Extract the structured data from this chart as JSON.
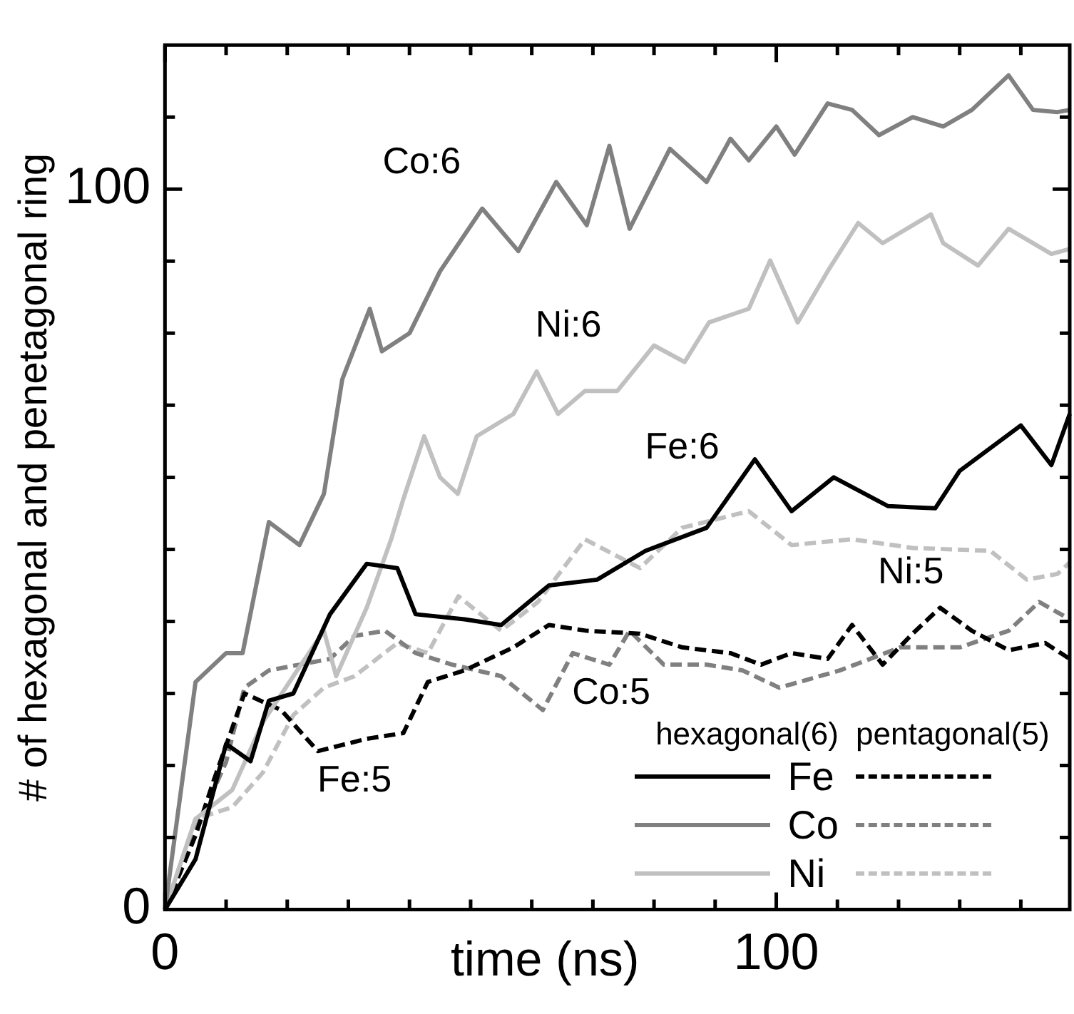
{
  "chart_data": {
    "type": "line",
    "xlabel": "time (ns)",
    "ylabel": "# of hexagonal and penetagonal ring",
    "xlim": [
      0,
      148
    ],
    "ylim": [
      0,
      120
    ],
    "xticks": [
      0,
      {
        "value": 10,
        "label": null
      },
      {
        "value": 20,
        "label": null
      },
      {
        "value": 30,
        "label": null
      },
      {
        "value": 40,
        "label": null
      },
      {
        "value": 50,
        "label": null
      },
      {
        "value": 60,
        "label": null
      },
      {
        "value": 70,
        "label": null
      },
      {
        "value": 80,
        "label": null
      },
      {
        "value": 90,
        "label": null
      },
      100,
      {
        "value": 110,
        "label": null
      },
      {
        "value": 120,
        "label": null
      },
      {
        "value": 130,
        "label": null
      },
      {
        "value": 140,
        "label": null
      }
    ],
    "yticks": [
      0,
      {
        "value": 10,
        "label": null
      },
      {
        "value": 20,
        "label": null
      },
      {
        "value": 30,
        "label": null
      },
      {
        "value": 40,
        "label": null
      },
      {
        "value": 50,
        "label": null
      },
      {
        "value": 60,
        "label": null
      },
      {
        "value": 70,
        "label": null
      },
      {
        "value": 80,
        "label": null
      },
      {
        "value": 90,
        "label": null
      },
      100,
      {
        "value": 110,
        "label": null
      }
    ],
    "grid": false,
    "marker": "none",
    "annotations": [
      "hexagonal(6)",
      "pentagonal(5)",
      "Fe",
      "Co",
      "Ni"
    ],
    "series": [
      {
        "name": "Fe:6",
        "color": "#000000",
        "line_style": "solid",
        "x": [
          0,
          5,
          10,
          14,
          17,
          21,
          27,
          33,
          38,
          41,
          49,
          55,
          62.8,
          70.7,
          78.6,
          88.6,
          96.5,
          102.5,
          109.4,
          118.3,
          126,
          130,
          140,
          145,
          148
        ],
        "values": [
          0,
          7,
          23,
          20.6,
          29,
          30,
          41,
          48,
          47.4,
          41,
          40.3,
          39.5,
          45,
          45.8,
          49.8,
          53,
          62.5,
          55.3,
          60,
          56,
          55.7,
          60.9,
          67.2,
          61.7,
          68.8
        ]
      },
      {
        "name": "Co:6",
        "color": "#808080",
        "line_style": "solid",
        "x": [
          0,
          5,
          10,
          12.7,
          17,
          22,
          26,
          29,
          33.5,
          35.5,
          40,
          45,
          51.9,
          57.8,
          64,
          69,
          72.7,
          76,
          82.6,
          88.6,
          92.5,
          95.5,
          100,
          103,
          108.4,
          112.4,
          116.8,
          122.3,
          127.3,
          132,
          138,
          142,
          146,
          148
        ],
        "values": [
          0,
          31.6,
          35.6,
          35.6,
          53.8,
          50.6,
          57.7,
          73.6,
          83.4,
          77.5,
          80,
          88.6,
          97.3,
          91.4,
          101,
          95,
          106,
          94.5,
          105.6,
          101,
          107,
          104,
          108.7,
          104.8,
          111.9,
          111,
          107.5,
          110,
          108.7,
          111,
          115.8,
          111,
          110.7,
          111
        ]
      },
      {
        "name": "Ni:6",
        "color": "#c0c0c0",
        "line_style": "solid",
        "x": [
          0,
          5,
          11,
          16,
          21,
          26,
          28,
          33,
          37,
          39,
          42.4,
          45,
          47.9,
          51,
          57,
          60.8,
          64.3,
          68.7,
          74,
          80,
          85,
          89,
          95.5,
          99,
          103.5,
          108.4,
          113.4,
          117.4,
          125.3,
          127.3,
          133,
          138,
          145,
          148
        ],
        "values": [
          0,
          12.6,
          16.6,
          26,
          32.4,
          38.7,
          32.4,
          41.9,
          51.4,
          57,
          65.7,
          60,
          57.7,
          65.7,
          68.8,
          74.7,
          68.8,
          72,
          72,
          78.3,
          76,
          81.5,
          83.4,
          90.1,
          81.5,
          88.6,
          95.3,
          92.5,
          96.5,
          92.5,
          89.4,
          94.5,
          91,
          91.7
        ]
      },
      {
        "name": "Fe:5",
        "color": "#000000",
        "line_style": "dashed",
        "x": [
          0,
          5,
          8,
          13,
          19,
          25,
          33,
          39,
          43,
          49,
          57,
          62.8,
          69,
          77.7,
          84.6,
          92.5,
          97.5,
          102.5,
          108.4,
          112.4,
          117.4,
          122.3,
          126.8,
          132,
          138,
          144,
          148
        ],
        "values": [
          0,
          10.3,
          18,
          30,
          27.7,
          22,
          23.7,
          24.5,
          31.6,
          33.2,
          36.4,
          39.5,
          38.7,
          38.3,
          36.4,
          35.6,
          34,
          35.6,
          34.8,
          39.5,
          34,
          38.3,
          41.9,
          38.7,
          36,
          37,
          34.8
        ]
      },
      {
        "name": "Co:5",
        "color": "#808080",
        "line_style": "dashed",
        "x": [
          0,
          5,
          10,
          13,
          17,
          22,
          27,
          31,
          36,
          41,
          47,
          55,
          61.8,
          66.7,
          72.7,
          76,
          81.6,
          88.6,
          94.5,
          100.5,
          110.4,
          120.3,
          130,
          138,
          143,
          148
        ],
        "values": [
          0,
          11,
          20.5,
          30.8,
          33.2,
          34,
          34.8,
          38,
          38.7,
          35.6,
          34,
          32.4,
          27.7,
          35.6,
          34,
          38.7,
          34,
          34,
          33.2,
          30.8,
          33.2,
          36.4,
          36.4,
          38.7,
          42.7,
          40.3
        ]
      },
      {
        "name": "Ni:5",
        "color": "#c0c0c0",
        "line_style": "dashed",
        "x": [
          0,
          5,
          11,
          16,
          21,
          26,
          31,
          38,
          43,
          48,
          55,
          61,
          68.7,
          77.7,
          84.6,
          95.5,
          102.5,
          112.4,
          122.3,
          135,
          141,
          146,
          148
        ],
        "values": [
          0,
          12.6,
          14.2,
          19,
          27,
          30.8,
          32.4,
          37,
          35.6,
          43.5,
          38.7,
          42.7,
          51.4,
          47.4,
          53,
          55.3,
          50.6,
          51.4,
          50.2,
          49.8,
          45.8,
          46.6,
          48.2
        ]
      }
    ]
  }
}
